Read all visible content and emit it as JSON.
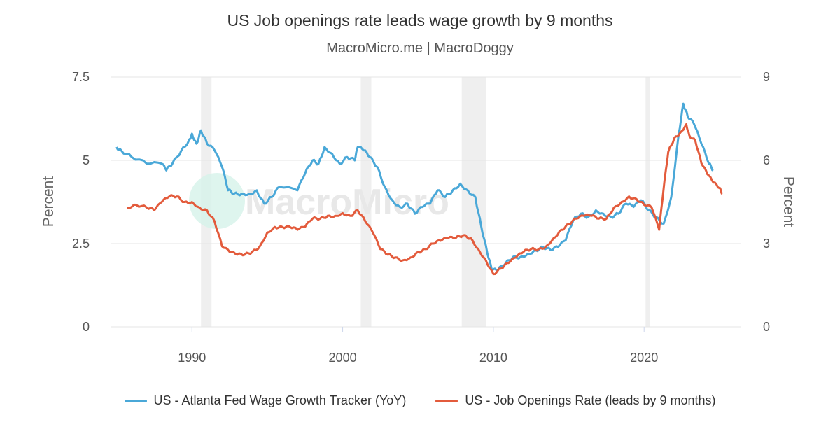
{
  "chart_data": {
    "type": "line",
    "title": "US Job openings rate leads wage growth by 9 months",
    "subtitle": "MacroMicro.me | MacroDoggy",
    "watermark": "MacroMicro",
    "x_ticks": [
      "1990",
      "2000",
      "2010",
      "2020"
    ],
    "xlim": [
      1984.6,
      2026.4
    ],
    "left_axis": {
      "label": "Percent",
      "ylim": [
        0,
        7.5
      ],
      "ticks": [
        "0",
        "2.5",
        "5",
        "7.5"
      ]
    },
    "right_axis": {
      "label": "Percent",
      "ylim": [
        0,
        9
      ],
      "ticks": [
        "0",
        "3",
        "6",
        "9"
      ]
    },
    "recessions": [
      [
        1990.6,
        1991.3
      ],
      [
        2001.2,
        2001.9
      ],
      [
        2007.9,
        2009.5
      ],
      [
        2020.1,
        2020.4
      ]
    ],
    "series": [
      {
        "name": "US - Atlanta Fed Wage Growth Tracker (YoY)",
        "axis": "left",
        "color": "#4aa8d8",
        "x": [
          1985.0,
          1985.3,
          1986.0,
          1987.0,
          1988.0,
          1988.3,
          1988.7,
          1989.3,
          1989.8,
          1990.0,
          1990.3,
          1990.6,
          1991.0,
          1991.5,
          1992.0,
          1992.4,
          1992.8,
          1993.3,
          1993.8,
          1994.3,
          1994.8,
          1995.3,
          1995.8,
          1997.0,
          1997.5,
          1998.0,
          1998.4,
          1998.8,
          1999.3,
          1999.8,
          2000.3,
          2000.8,
          2001.0,
          2001.4,
          2001.8,
          2002.3,
          2002.8,
          2003.3,
          2003.8,
          2004.3,
          2004.8,
          2005.3,
          2005.8,
          2006.3,
          2006.8,
          2007.3,
          2007.8,
          2008.3,
          2008.8,
          2009.2,
          2009.6,
          2009.9,
          2010.3,
          2010.8,
          2011.3,
          2011.8,
          2012.3,
          2012.8,
          2013.3,
          2013.8,
          2014.3,
          2014.8,
          2015.3,
          2015.8,
          2016.3,
          2016.8,
          2017.3,
          2017.8,
          2018.3,
          2018.8,
          2019.3,
          2019.8,
          2020.3,
          2020.8,
          2021.3,
          2021.8,
          2022.3,
          2022.6,
          2022.9,
          2023.3,
          2023.8,
          2024.3,
          2024.6
        ],
        "values": [
          5.4,
          5.3,
          5.1,
          4.9,
          4.9,
          4.7,
          4.9,
          5.3,
          5.6,
          5.8,
          5.5,
          5.9,
          5.5,
          5.3,
          4.8,
          4.1,
          4.0,
          4.0,
          4.0,
          4.1,
          3.7,
          3.9,
          4.2,
          4.1,
          4.6,
          5.0,
          4.9,
          5.4,
          5.2,
          4.9,
          5.1,
          5.0,
          5.4,
          5.3,
          5.1,
          4.8,
          4.2,
          3.8,
          3.6,
          3.7,
          3.4,
          3.6,
          3.7,
          4.1,
          3.9,
          4.1,
          4.3,
          4.1,
          3.9,
          3.0,
          2.2,
          1.7,
          1.7,
          1.9,
          2.1,
          2.1,
          2.2,
          2.3,
          2.4,
          2.3,
          2.4,
          2.6,
          3.2,
          3.4,
          3.3,
          3.5,
          3.4,
          3.3,
          3.4,
          3.7,
          3.6,
          3.8,
          3.5,
          3.3,
          3.1,
          3.9,
          5.8,
          6.7,
          6.3,
          6.1,
          5.5,
          4.9,
          4.7
        ]
      },
      {
        "name": "US - Job Openings Rate (leads by 9 months)",
        "axis": "right",
        "color": "#e35b3c",
        "x": [
          1985.7,
          1986.3,
          1987.0,
          1987.5,
          1988.0,
          1988.5,
          1989.0,
          1989.5,
          1990.0,
          1990.5,
          1991.0,
          1991.5,
          1992.0,
          1992.5,
          1993.0,
          1993.5,
          1994.0,
          1994.5,
          1995.0,
          1995.5,
          1996.0,
          1996.5,
          1997.0,
          1997.5,
          1998.0,
          1998.5,
          1999.0,
          1999.5,
          2000.0,
          2000.5,
          2001.0,
          2001.5,
          2002.0,
          2002.5,
          2003.0,
          2003.5,
          2004.0,
          2004.5,
          2005.0,
          2005.5,
          2006.0,
          2006.5,
          2007.0,
          2007.5,
          2008.0,
          2008.5,
          2009.0,
          2009.5,
          2010.0,
          2010.5,
          2011.0,
          2011.5,
          2012.0,
          2012.5,
          2013.0,
          2013.5,
          2014.0,
          2014.5,
          2015.0,
          2015.5,
          2016.0,
          2016.5,
          2017.0,
          2017.5,
          2018.0,
          2018.5,
          2019.0,
          2019.5,
          2020.0,
          2020.5,
          2021.0,
          2021.3,
          2021.6,
          2022.0,
          2022.4,
          2022.8,
          2023.0,
          2023.4,
          2023.8,
          2024.2,
          2024.6,
          2025.0,
          2025.2
        ],
        "values": [
          4.3,
          4.4,
          4.3,
          4.2,
          4.5,
          4.7,
          4.7,
          4.5,
          4.5,
          4.3,
          4.2,
          3.8,
          2.9,
          2.7,
          2.6,
          2.6,
          2.7,
          2.9,
          3.4,
          3.6,
          3.6,
          3.6,
          3.5,
          3.6,
          3.9,
          3.9,
          4.0,
          4.0,
          4.1,
          4.0,
          4.2,
          3.8,
          3.4,
          2.8,
          2.6,
          2.5,
          2.4,
          2.5,
          2.7,
          2.8,
          3.0,
          3.1,
          3.2,
          3.2,
          3.3,
          3.2,
          2.8,
          2.4,
          1.9,
          2.1,
          2.3,
          2.5,
          2.7,
          2.8,
          2.8,
          2.9,
          3.2,
          3.5,
          3.7,
          3.9,
          4.0,
          4.0,
          3.9,
          3.9,
          4.3,
          4.5,
          4.7,
          4.6,
          4.4,
          4.3,
          3.5,
          5.0,
          6.3,
          6.8,
          7.0,
          7.3,
          6.9,
          6.7,
          5.9,
          5.5,
          5.2,
          5.0,
          4.8
        ]
      }
    ]
  }
}
